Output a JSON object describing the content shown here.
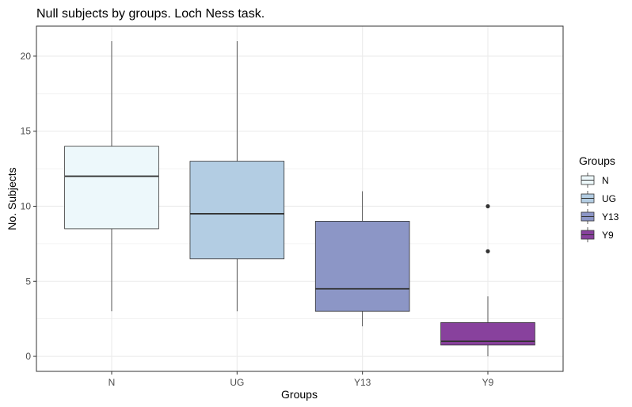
{
  "chart_data": {
    "type": "boxplot",
    "title": "Null subjects by groups. Loch Ness task.",
    "xlabel": "Groups",
    "ylabel": "No. Subjects",
    "categories": [
      "N",
      "UG",
      "Y13",
      "Y9"
    ],
    "ylim": [
      -1,
      22
    ],
    "yticks": [
      0,
      5,
      10,
      15,
      20
    ],
    "grid": true,
    "legend": {
      "title": "Groups",
      "position": "right"
    },
    "boxes": [
      {
        "group": "N",
        "whisker_low": 3,
        "q1": 8.5,
        "median": 12,
        "q3": 14,
        "whisker_high": 21,
        "outliers": [],
        "color": "#edf8fb"
      },
      {
        "group": "UG",
        "whisker_low": 3,
        "q1": 6.5,
        "median": 9.5,
        "q3": 13,
        "whisker_high": 21,
        "outliers": [],
        "color": "#b3cde3"
      },
      {
        "group": "Y13",
        "whisker_low": 2,
        "q1": 3,
        "median": 4.5,
        "q3": 9,
        "whisker_high": 11,
        "outliers": [],
        "color": "#8c96c6"
      },
      {
        "group": "Y9",
        "whisker_low": 0,
        "q1": 0.75,
        "median": 1,
        "q3": 2.25,
        "whisker_high": 4,
        "outliers": [
          7,
          10
        ],
        "color": "#88419d"
      }
    ]
  }
}
